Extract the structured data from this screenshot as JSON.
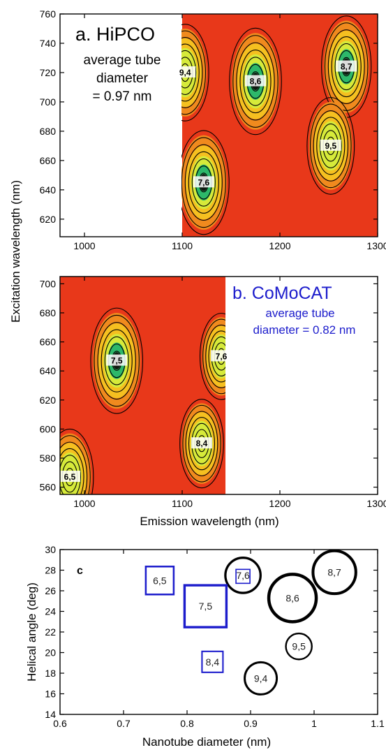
{
  "chart_data": [
    {
      "type": "heatmap",
      "panel": "a",
      "title": "a. HiPCO",
      "annotation": [
        "average tube",
        "diameter",
        "= 0.97 nm"
      ],
      "xlim": [
        975,
        1300
      ],
      "ylim": [
        608,
        760
      ],
      "x_ticks": [
        1000,
        1100,
        1200,
        1300
      ],
      "y_ticks": [
        620,
        640,
        660,
        680,
        700,
        720,
        740,
        760
      ],
      "data_x_range": [
        1100,
        1300
      ],
      "data_y_range": [
        608,
        760
      ],
      "colors": {
        "low": "#e8381a",
        "mid": "#f5c020",
        "high": "#d6ea3a",
        "peak": "#2db86a",
        "core": "#101810"
      },
      "peaks": [
        {
          "label": "9,4",
          "x": 1103,
          "y": 720,
          "intensity": 0.8
        },
        {
          "label": "8,6",
          "x": 1175,
          "y": 714,
          "intensity": 1.0
        },
        {
          "label": "8,7",
          "x": 1268,
          "y": 724,
          "intensity": 0.9
        },
        {
          "label": "9,5",
          "x": 1252,
          "y": 670,
          "intensity": 0.8
        },
        {
          "label": "7,6",
          "x": 1122,
          "y": 645,
          "intensity": 0.95
        }
      ]
    },
    {
      "type": "heatmap",
      "panel": "b",
      "title": "b. CoMoCAT",
      "annotation": [
        "average tube",
        "diameter = 0.82 nm"
      ],
      "xlim": [
        975,
        1300
      ],
      "ylim": [
        555,
        705
      ],
      "x_ticks": [
        1000,
        1100,
        1200,
        1300
      ],
      "y_ticks": [
        560,
        580,
        600,
        620,
        640,
        660,
        680,
        700
      ],
      "data_x_range": [
        975,
        1145
      ],
      "data_y_range": [
        555,
        705
      ],
      "peaks": [
        {
          "label": "7,5",
          "x": 1033,
          "y": 647,
          "intensity": 1.0
        },
        {
          "label": "7,6",
          "x": 1140,
          "y": 650,
          "intensity": 0.6
        },
        {
          "label": "8,4",
          "x": 1120,
          "y": 590,
          "intensity": 0.65
        },
        {
          "label": "6,5",
          "x": 985,
          "y": 567,
          "intensity": 0.8
        }
      ]
    },
    {
      "type": "scatter",
      "panel": "c",
      "title": "c",
      "xlabel": "Nanotube diameter (nm)",
      "ylabel": "Helical angle (deg)",
      "xlim": [
        0.6,
        1.1
      ],
      "ylim": [
        14,
        30
      ],
      "x_ticks": [
        0.6,
        0.7,
        0.8,
        0.9,
        1.0,
        1.1
      ],
      "y_ticks": [
        14,
        16,
        18,
        20,
        22,
        24,
        26,
        28,
        30
      ],
      "series": [
        {
          "name": "HiPCO",
          "marker": "circle",
          "color": "#000000",
          "points": [
            {
              "label": "7,6",
              "x": 0.888,
              "y": 27.5,
              "size": 0.6
            },
            {
              "label": "8,6",
              "x": 0.966,
              "y": 25.3,
              "size": 1.0
            },
            {
              "label": "8,7",
              "x": 1.032,
              "y": 27.8,
              "size": 0.85
            },
            {
              "label": "9,5",
              "x": 0.976,
              "y": 20.6,
              "size": 0.3
            },
            {
              "label": "9,4",
              "x": 0.916,
              "y": 17.5,
              "size": 0.5
            }
          ]
        },
        {
          "name": "CoMoCAT",
          "marker": "square",
          "color": "#1c1ccc",
          "points": [
            {
              "label": "6,5",
              "x": 0.757,
              "y": 27.0,
              "size": 0.6
            },
            {
              "label": "7,5",
              "x": 0.829,
              "y": 24.5,
              "size": 1.0
            },
            {
              "label": "8,4",
              "x": 0.84,
              "y": 19.1,
              "size": 0.4
            },
            {
              "label": "",
              "x": 0.888,
              "y": 27.4,
              "size": 0.2
            }
          ]
        }
      ]
    }
  ],
  "shared": {
    "ylabel_ab": "Excitation wavelength (nm)",
    "xlabel_ab": "Emission wavelength (nm)"
  }
}
